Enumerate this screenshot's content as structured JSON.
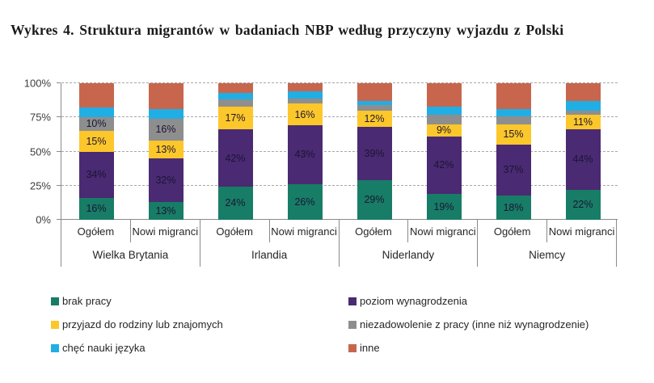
{
  "title": "Wykres 4. Struktura migrantów w badaniach NBP według przyczyny wyjazdu z Polski",
  "chart_data": {
    "type": "bar",
    "subtype": "stacked-100-percent",
    "title": "Wykres 4. Struktura migrantów w badaniach NBP według przyczyny wyjazdu z Polski",
    "y_axis": {
      "ticks": [
        0,
        25,
        50,
        75,
        100
      ],
      "tick_labels": [
        "0%",
        "25%",
        "50%",
        "75%",
        "100%"
      ],
      "range": [
        0,
        100
      ],
      "grid": "dashed"
    },
    "groups": [
      "Wielka Brytania",
      "Irlandia",
      "Niderlandy",
      "Niemcy"
    ],
    "bar_labels": [
      "Ogółem",
      "Nowi migranci"
    ],
    "categories": [
      "Wielka Brytania Ogółem",
      "Wielka Brytania Nowi migranci",
      "Irlandia Ogółem",
      "Irlandia Nowi migranci",
      "Niderlandy Ogółem",
      "Niderlandy Nowi migranci",
      "Niemcy Ogółem",
      "Niemcy Nowi migranci"
    ],
    "legend_position": "bottom",
    "series": [
      {
        "name": "brak pracy",
        "color": "#177d66",
        "values": [
          16,
          13,
          24,
          26,
          29,
          19,
          18,
          22
        ],
        "labeled": [
          1,
          1,
          1,
          1,
          1,
          1,
          1,
          1
        ]
      },
      {
        "name": "poziom wynagrodzenia",
        "color": "#4a2a72",
        "values": [
          34,
          32,
          42,
          43,
          39,
          42,
          37,
          44
        ],
        "labeled": [
          1,
          1,
          1,
          1,
          1,
          1,
          1,
          1
        ]
      },
      {
        "name": "przyjazd do rodziny lub znajomych",
        "color": "#fcc72a",
        "values": [
          15,
          13,
          17,
          16,
          12,
          9,
          15,
          11
        ],
        "labeled": [
          1,
          1,
          1,
          1,
          1,
          1,
          1,
          1
        ]
      },
      {
        "name": "niezadowolenie z pracy (inne niż wynagrodzenie)",
        "color": "#8e8e8e",
        "values": [
          10,
          16,
          5,
          4,
          4,
          7,
          6,
          3
        ],
        "labeled": [
          1,
          1,
          0,
          0,
          0,
          0,
          0,
          0
        ]
      },
      {
        "name": "chęć nauki języka",
        "color": "#21aee5",
        "values": [
          7,
          7,
          5,
          5,
          3,
          6,
          5,
          7
        ],
        "labeled": [
          0,
          0,
          0,
          0,
          0,
          0,
          0,
          0
        ]
      },
      {
        "name": "inne",
        "color": "#c7664d",
        "values": [
          18,
          19,
          7,
          6,
          13,
          17,
          19,
          13
        ],
        "labeled": [
          0,
          0,
          0,
          0,
          0,
          0,
          0,
          0
        ]
      }
    ],
    "value_suffix": "%"
  }
}
